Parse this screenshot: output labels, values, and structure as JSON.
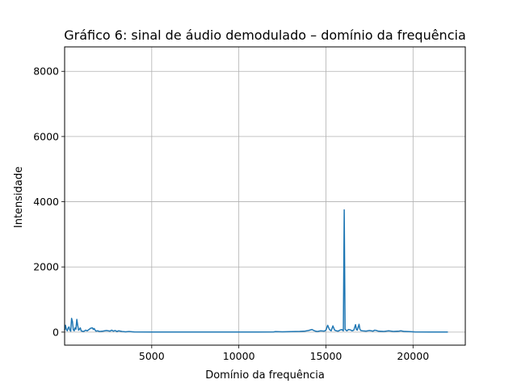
{
  "chart_data": {
    "type": "line",
    "title": "Gráfico 6: sinal de áudio demodulado – domínio da frequência",
    "xlabel": "Domínio da frequência",
    "ylabel": "Intensidade",
    "xlim": [
      0,
      23000
    ],
    "ylim": [
      -400,
      8750
    ],
    "xticks": [
      5000,
      10000,
      15000,
      20000
    ],
    "xtick_labels": [
      "5000",
      "10000",
      "15000",
      "20000"
    ],
    "yticks": [
      0,
      2000,
      4000,
      6000,
      8000
    ],
    "ytick_labels": [
      "0",
      "2000",
      "4000",
      "6000",
      "8000"
    ],
    "grid": true,
    "legend": "none",
    "colors": {
      "line": "#1f77b4",
      "grid": "#b0b0b0",
      "axes": "#000000"
    },
    "series": [
      {
        "x": [
          0,
          50,
          100,
          150,
          200,
          250,
          300,
          350,
          400,
          450,
          500,
          550,
          600,
          650,
          700,
          750,
          800,
          850,
          900,
          950,
          1000,
          1100,
          1200,
          1300,
          1400,
          1500,
          1600,
          1650,
          1700,
          1750,
          1800,
          1900,
          2000,
          2200,
          2400,
          2600,
          2700,
          2800,
          2900,
          3000,
          3100,
          3200,
          3300,
          3500,
          3700,
          3900,
          4000,
          5000,
          6000,
          7000,
          8000,
          9000,
          10000,
          11000,
          12000,
          12100,
          12500,
          13000,
          13500,
          13800,
          14000,
          14200,
          14300,
          14400,
          14500,
          14700,
          14900,
          15000,
          15100,
          15200,
          15300,
          15400,
          15500,
          15600,
          15700,
          15800,
          15900,
          16000,
          16050,
          16100,
          16150,
          16200,
          16300,
          16400,
          16500,
          16600,
          16700,
          16750,
          16800,
          16900,
          16950,
          17000,
          17100,
          17300,
          17500,
          17700,
          17800,
          17900,
          18000,
          18300,
          18600,
          18900,
          19200,
          19300,
          19500,
          19800,
          20000,
          20100,
          21000,
          22000
        ],
        "values": [
          60,
          210,
          80,
          40,
          120,
          160,
          60,
          30,
          420,
          320,
          70,
          40,
          130,
          90,
          390,
          210,
          60,
          90,
          130,
          40,
          30,
          20,
          60,
          40,
          80,
          120,
          130,
          80,
          110,
          60,
          30,
          40,
          20,
          30,
          50,
          30,
          60,
          30,
          50,
          20,
          40,
          30,
          20,
          10,
          20,
          10,
          5,
          3,
          3,
          3,
          3,
          3,
          3,
          3,
          5,
          15,
          10,
          15,
          20,
          30,
          50,
          80,
          50,
          30,
          20,
          40,
          30,
          60,
          210,
          80,
          40,
          190,
          60,
          40,
          30,
          60,
          80,
          40,
          3750,
          90,
          60,
          40,
          80,
          70,
          40,
          60,
          230,
          80,
          60,
          240,
          90,
          50,
          40,
          30,
          50,
          30,
          60,
          50,
          30,
          20,
          40,
          20,
          30,
          40,
          20,
          15,
          10,
          5,
          3,
          3
        ]
      }
    ]
  }
}
